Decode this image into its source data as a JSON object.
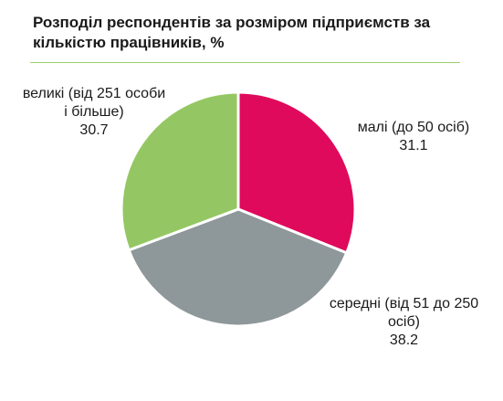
{
  "chart_data": {
    "type": "pie",
    "title": "Розподіл респондентів за розміром підприємств за кількістю працівників, %",
    "slices": [
      {
        "label": "малі (до 50 осіб)",
        "value": 31.1,
        "value_text": "31.1",
        "color": "#df0a5c"
      },
      {
        "label": "середні  (від 51 до 250 осіб)",
        "value": 38.2,
        "value_text": "38.2",
        "color": "#8e979a"
      },
      {
        "label": "великі (від 251 особи і більше)",
        "value": 30.7,
        "value_text": "30.7",
        "color": "#94c763"
      }
    ],
    "start_angle_deg": 0,
    "direction": "clockwise",
    "legend": "none"
  },
  "colors": {
    "title_rule": "#9ccf6a",
    "slice_border": "#ffffff"
  }
}
